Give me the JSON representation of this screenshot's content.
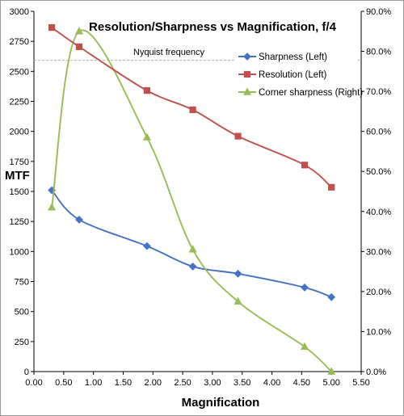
{
  "chart_data": {
    "type": "line",
    "title": "Resolution/Sharpness vs Magnification, f/4",
    "xlabel": "Magnification",
    "ylabel": "MTF",
    "xlim": [
      0,
      5.5
    ],
    "x_ticks": [
      "0.00",
      "0.50",
      "1.00",
      "1.50",
      "2.00",
      "2.50",
      "3.00",
      "3.50",
      "4.00",
      "4.50",
      "5.00",
      "5.50"
    ],
    "ylim": [
      0,
      3000
    ],
    "y_ticks": [
      "0",
      "250",
      "500",
      "750",
      "1000",
      "1250",
      "1500",
      "1750",
      "2000",
      "2250",
      "2500",
      "2750",
      "3000"
    ],
    "y2lim": [
      0,
      90
    ],
    "y2_ticks": [
      "0.0%",
      "10.0%",
      "20.0%",
      "30.0%",
      "40.0%",
      "50.0%",
      "60.0%",
      "70.0%",
      "80.0%",
      "90.0%"
    ],
    "grid": false,
    "legend_position": "top-right",
    "annotation": {
      "label": "Nyquist frequency",
      "y": 2592
    },
    "series": [
      {
        "name": "Sharpness (Left)",
        "axis": "left",
        "marker": "diamond",
        "color": "#4472C4",
        "x": [
          0.3,
          0.76,
          1.9,
          2.67,
          3.43,
          4.55,
          5.0
        ],
        "values": [
          1510,
          1265,
          1045,
          875,
          815,
          700,
          620
        ]
      },
      {
        "name": "Resolution (Left)",
        "axis": "left",
        "marker": "square",
        "color": "#C0504D",
        "x": [
          0.3,
          0.76,
          1.9,
          2.67,
          3.43,
          4.55,
          5.0
        ],
        "values": [
          2865,
          2705,
          2340,
          2180,
          1960,
          1720,
          1535
        ]
      },
      {
        "name": "Corner sharpness (Right)",
        "axis": "right",
        "marker": "triangle",
        "color": "#9BBB59",
        "x": [
          0.3,
          0.76,
          1.9,
          2.67,
          3.43,
          4.55,
          5.0
        ],
        "values": [
          41,
          85,
          58.5,
          30.5,
          17.5,
          6.2,
          0
        ]
      }
    ]
  }
}
